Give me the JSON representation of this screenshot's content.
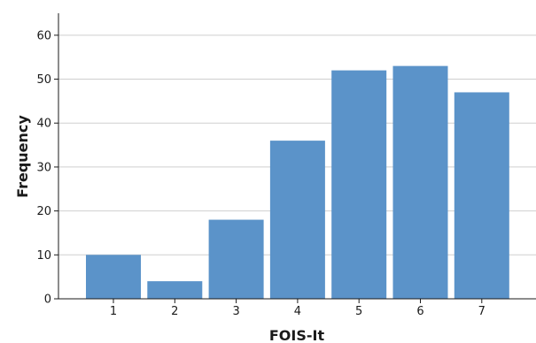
{
  "chart_data": {
    "type": "bar",
    "title": "",
    "xlabel": "FOIS-It",
    "ylabel": "Frequency",
    "categories": [
      "1",
      "2",
      "3",
      "4",
      "5",
      "6",
      "7"
    ],
    "values": [
      10,
      4,
      18,
      36,
      52,
      53,
      47
    ],
    "ylim": [
      0,
      65
    ],
    "yticks": [
      0,
      10,
      20,
      30,
      40,
      50,
      60
    ],
    "grid": true,
    "legend": "none",
    "colors": {
      "bar": "#5b93c9",
      "gridline": "#cfcfcf",
      "axis": "#1a1a1a"
    }
  }
}
